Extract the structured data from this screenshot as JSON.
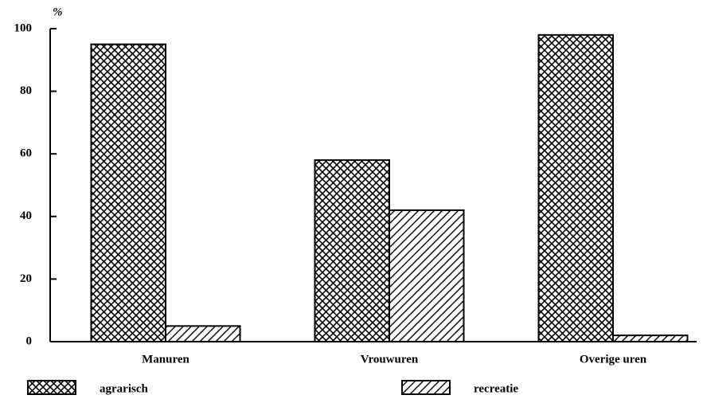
{
  "chart_data": {
    "type": "bar",
    "y_label": "%",
    "categories": [
      "Manuren",
      "Vrouwuren",
      "Overige uren"
    ],
    "series": [
      {
        "name": "agrarisch",
        "color": "#000000",
        "hatch": "cross",
        "values": [
          95,
          58,
          98
        ]
      },
      {
        "name": "recreatie",
        "color": "#000000",
        "hatch": "diagonal",
        "values": [
          5,
          42,
          2
        ]
      }
    ],
    "ylim": [
      0,
      100
    ],
    "yticks": [
      0,
      20,
      40,
      60,
      80,
      100
    ],
    "legend": "bottom"
  }
}
